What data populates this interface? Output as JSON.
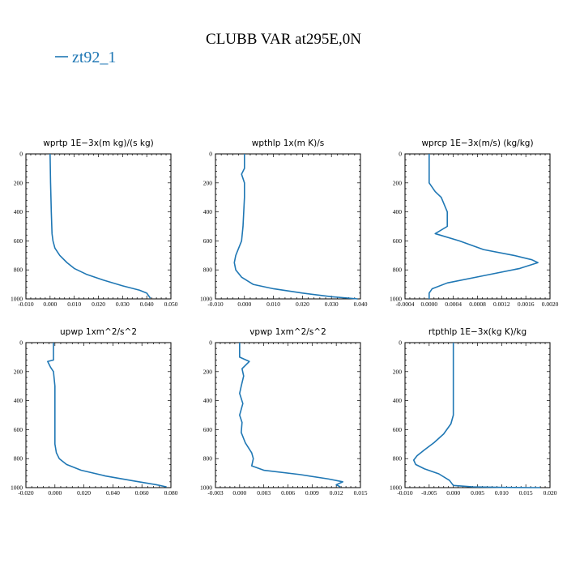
{
  "title": "CLUBB VAR at295E,0N",
  "legend": {
    "label": "zt92_1",
    "color": "#1f77b4"
  },
  "chart_data": [
    {
      "type": "line",
      "title": "wprtp  1E−3x(m kg)/(s kg)",
      "xlim": [
        -0.01,
        0.05
      ],
      "xticks": [
        "-0.010",
        "0.000",
        "0.010",
        "0.020",
        "0.030",
        "0.040",
        "0.050"
      ],
      "ylim": [
        0,
        1000
      ],
      "yticks": [
        "0",
        "200",
        "400",
        "600",
        "800",
        "1000"
      ],
      "y_inverted": true,
      "series": [
        {
          "x": [
            0.0,
            0.0002,
            0.0005,
            0.0008,
            0.0012,
            0.002,
            0.004,
            0.007,
            0.01,
            0.015,
            0.022,
            0.03,
            0.037,
            0.04,
            0.0415
          ],
          "y": [
            0,
            200,
            400,
            550,
            600,
            650,
            700,
            750,
            790,
            830,
            870,
            910,
            940,
            960,
            995
          ]
        }
      ]
    },
    {
      "type": "line",
      "title": "wpthlp  1x(m K)/s",
      "xlim": [
        -0.01,
        0.04
      ],
      "xticks": [
        "-0.010",
        "0.000",
        "0.010",
        "0.020",
        "0.030",
        "0.040"
      ],
      "ylim": [
        0,
        1000
      ],
      "yticks": [
        "0",
        "200",
        "400",
        "600",
        "800",
        "1000"
      ],
      "y_inverted": true,
      "series": [
        {
          "x": [
            0.0,
            0.0,
            -0.001,
            0.0,
            0.0,
            -0.0005,
            -0.001,
            -0.003,
            -0.0035,
            -0.003,
            -0.001,
            0.003,
            0.01,
            0.02,
            0.03,
            0.039
          ],
          "y": [
            0,
            100,
            140,
            200,
            300,
            500,
            600,
            700,
            750,
            800,
            850,
            900,
            930,
            960,
            985,
            1000
          ]
        }
      ]
    },
    {
      "type": "line",
      "title": "wprcp  1E−3x(m/s) (kg/kg)",
      "xlim": [
        -0.0004,
        0.002
      ],
      "xticks": [
        "-0.0004",
        "0.0000",
        "0.0004",
        "0.0008",
        "0.0012",
        "0.0016",
        "0.0020"
      ],
      "ylim": [
        0,
        1000
      ],
      "yticks": [
        "0",
        "200",
        "400",
        "600",
        "800",
        "1000"
      ],
      "y_inverted": true,
      "series": [
        {
          "x": [
            0.0,
            0.0,
            0.0001,
            0.0002,
            0.0003,
            0.0003,
            0.0001,
            0.0005,
            0.0009,
            0.0014,
            0.0017,
            0.0018,
            0.0015,
            0.0009,
            0.0003,
            5e-05,
            0.0,
            0.0
          ],
          "y": [
            0,
            200,
            260,
            300,
            400,
            500,
            550,
            600,
            660,
            700,
            730,
            750,
            790,
            840,
            890,
            930,
            960,
            1000
          ]
        }
      ]
    },
    {
      "type": "line",
      "title": "upwp  1xm^2/s^2",
      "xlim": [
        -0.02,
        0.08
      ],
      "xticks": [
        "-0.020",
        "0.000",
        "0.020",
        "0.040",
        "0.060",
        "0.080"
      ],
      "ylim": [
        0,
        1000
      ],
      "yticks": [
        "0",
        "200",
        "400",
        "600",
        "800",
        "1000"
      ],
      "y_inverted": true,
      "series": [
        {
          "x": [
            -0.001,
            -0.001,
            -0.005,
            -0.003,
            -0.001,
            0.0,
            0.0,
            0.0,
            0.001,
            0.003,
            0.008,
            0.018,
            0.035,
            0.055,
            0.07,
            0.077
          ],
          "y": [
            0,
            120,
            130,
            170,
            200,
            300,
            500,
            700,
            760,
            800,
            840,
            880,
            920,
            955,
            980,
            995
          ]
        }
      ]
    },
    {
      "type": "line",
      "title": "vpwp  1xm^2/s^2",
      "xlim": [
        -0.003,
        0.015
      ],
      "xticks": [
        "-0.003",
        "0.000",
        "0.003",
        "0.006",
        "0.009",
        "0.012",
        "0.015"
      ],
      "ylim": [
        0,
        1000
      ],
      "yticks": [
        "0",
        "200",
        "400",
        "600",
        "800",
        "1000"
      ],
      "y_inverted": true,
      "series": [
        {
          "x": [
            0.0,
            0.0,
            0.0012,
            0.0003,
            0.0005,
            0.0002,
            0.0,
            0.0004,
            0.0,
            0.0003,
            0.0002,
            0.0007,
            0.0015,
            0.0017,
            0.0015,
            0.003,
            0.0075,
            0.011,
            0.0128,
            0.012,
            0.0125
          ],
          "y": [
            0,
            100,
            130,
            180,
            230,
            300,
            350,
            420,
            500,
            550,
            620,
            690,
            760,
            800,
            850,
            880,
            910,
            940,
            960,
            980,
            995
          ]
        }
      ]
    },
    {
      "type": "line",
      "title": "rtpthlp  1E−3x(kg K)/kg",
      "xlim": [
        -0.01,
        0.02
      ],
      "xticks": [
        "-0.010",
        "-0.005",
        "0.000",
        "0.005",
        "0.010",
        "0.015",
        "0.020"
      ],
      "ylim": [
        0,
        1000
      ],
      "yticks": [
        "0",
        "200",
        "400",
        "600",
        "800",
        "1000"
      ],
      "y_inverted": true,
      "series": [
        {
          "x": [
            0.0,
            0.0,
            0.0,
            -0.0005,
            -0.002,
            -0.004,
            -0.006,
            -0.0075,
            -0.0082,
            -0.0078,
            -0.006,
            -0.003,
            -0.0008,
            0.0,
            0.004,
            0.01,
            0.016,
            0.018
          ],
          "y": [
            0,
            200,
            500,
            560,
            630,
            690,
            740,
            780,
            810,
            840,
            870,
            905,
            950,
            985,
            995,
            998,
            1000,
            1000
          ]
        }
      ]
    }
  ]
}
